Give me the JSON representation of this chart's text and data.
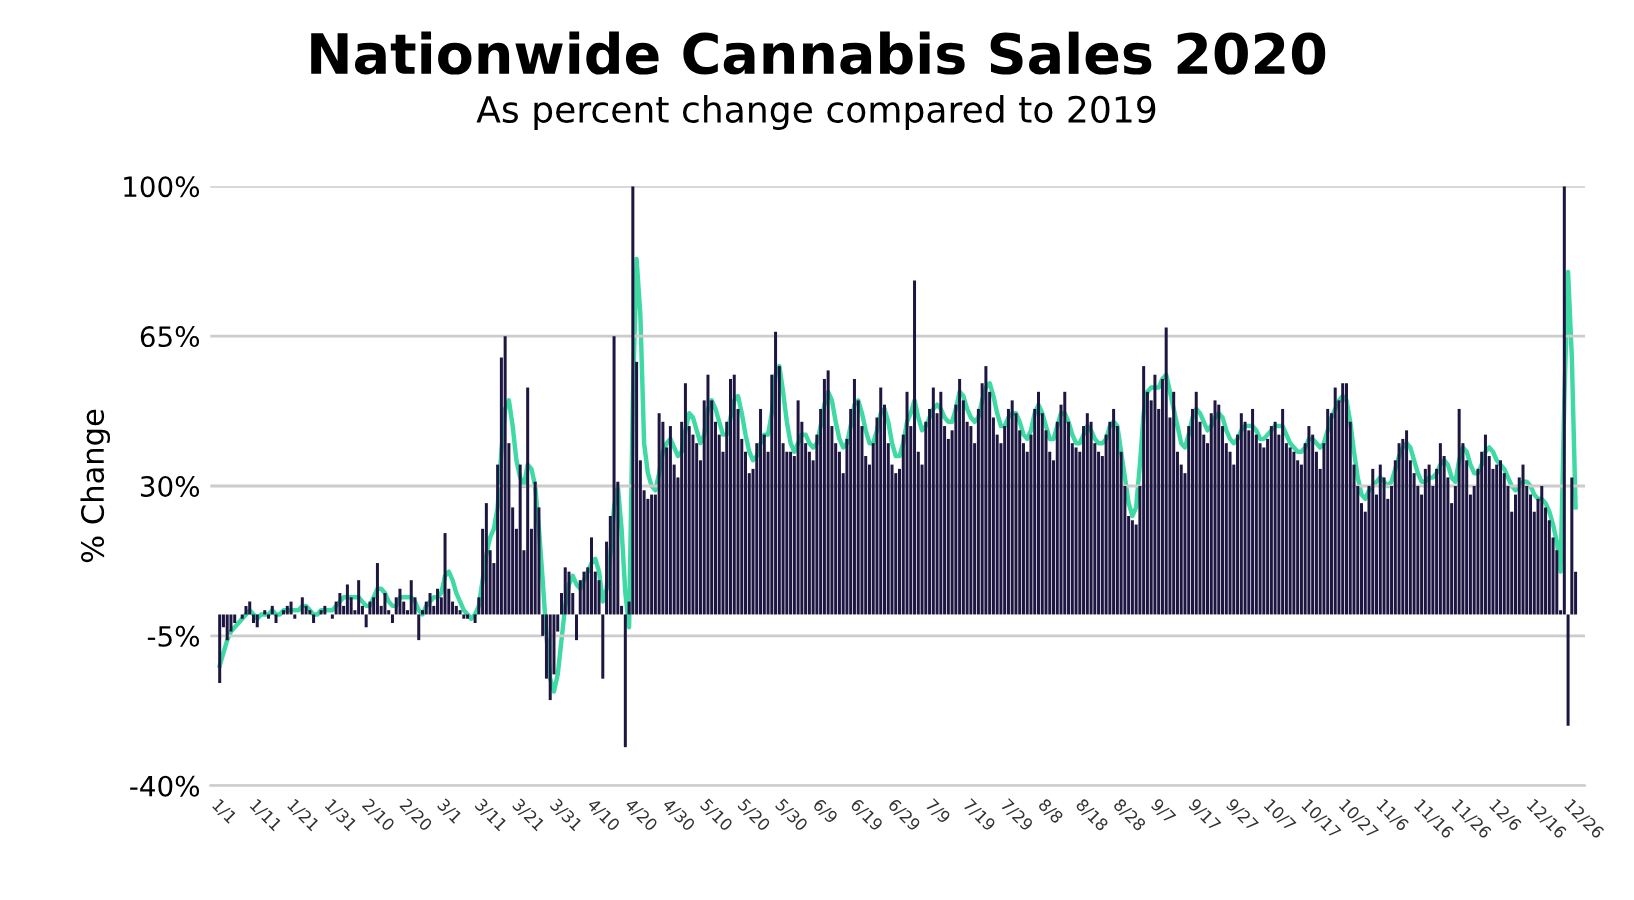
{
  "chart_data": {
    "type": "bar",
    "title": "Nationwide Cannabis Sales 2020",
    "subtitle": "As percent change compared to 2019",
    "ylabel": "% Change",
    "categories": [
      "1/1",
      null,
      null,
      null,
      null,
      null,
      null,
      null,
      null,
      null,
      "1/11",
      null,
      null,
      null,
      null,
      null,
      null,
      null,
      null,
      null,
      "1/21",
      null,
      null,
      null,
      null,
      null,
      null,
      null,
      null,
      null,
      "1/31",
      null,
      null,
      null,
      null,
      null,
      null,
      null,
      null,
      null,
      "2/10",
      null,
      null,
      null,
      null,
      null,
      null,
      null,
      null,
      null,
      "2/20",
      null,
      null,
      null,
      null,
      null,
      null,
      null,
      null,
      null,
      "3/1",
      null,
      null,
      null,
      null,
      null,
      null,
      null,
      null,
      null,
      "3/11",
      null,
      null,
      null,
      null,
      null,
      null,
      null,
      null,
      null,
      "3/21",
      null,
      null,
      null,
      null,
      null,
      null,
      null,
      null,
      null,
      "3/31",
      null,
      null,
      null,
      null,
      null,
      null,
      null,
      null,
      null,
      "4/10",
      null,
      null,
      null,
      null,
      null,
      null,
      null,
      null,
      null,
      "4/20",
      null,
      null,
      null,
      null,
      null,
      null,
      null,
      null,
      null,
      "4/30",
      null,
      null,
      null,
      null,
      null,
      null,
      null,
      null,
      null,
      "5/10",
      null,
      null,
      null,
      null,
      null,
      null,
      null,
      null,
      null,
      "5/20",
      null,
      null,
      null,
      null,
      null,
      null,
      null,
      null,
      null,
      "5/30",
      null,
      null,
      null,
      null,
      null,
      null,
      null,
      null,
      null,
      "6/9",
      null,
      null,
      null,
      null,
      null,
      null,
      null,
      null,
      null,
      "6/19",
      null,
      null,
      null,
      null,
      null,
      null,
      null,
      null,
      null,
      "6/29",
      null,
      null,
      null,
      null,
      null,
      null,
      null,
      null,
      null,
      "7/9",
      null,
      null,
      null,
      null,
      null,
      null,
      null,
      null,
      null,
      "7/19",
      null,
      null,
      null,
      null,
      null,
      null,
      null,
      null,
      null,
      "7/29",
      null,
      null,
      null,
      null,
      null,
      null,
      null,
      null,
      null,
      "8/8",
      null,
      null,
      null,
      null,
      null,
      null,
      null,
      null,
      null,
      "8/18",
      null,
      null,
      null,
      null,
      null,
      null,
      null,
      null,
      null,
      "8/28",
      null,
      null,
      null,
      null,
      null,
      null,
      null,
      null,
      null,
      "9/7",
      null,
      null,
      null,
      null,
      null,
      null,
      null,
      null,
      null,
      "9/17",
      null,
      null,
      null,
      null,
      null,
      null,
      null,
      null,
      null,
      "9/27",
      null,
      null,
      null,
      null,
      null,
      null,
      null,
      null,
      null,
      "10/7",
      null,
      null,
      null,
      null,
      null,
      null,
      null,
      null,
      null,
      "10/17",
      null,
      null,
      null,
      null,
      null,
      null,
      null,
      null,
      null,
      "10/27",
      null,
      null,
      null,
      null,
      null,
      null,
      null,
      null,
      null,
      "11/6",
      null,
      null,
      null,
      null,
      null,
      null,
      null,
      null,
      null,
      "11/16",
      null,
      null,
      null,
      null,
      null,
      null,
      null,
      null,
      null,
      "11/26",
      null,
      null,
      null,
      null,
      null,
      null,
      null,
      null,
      null,
      "12/6",
      null,
      null,
      null,
      null,
      null,
      null,
      null,
      null,
      null,
      "12/16",
      null,
      null,
      null,
      null,
      null,
      null,
      null,
      null,
      null,
      "12/26",
      null
    ],
    "series": [
      {
        "color": "#1c1640",
        "values": [
          -16,
          -3,
          -6,
          -4,
          -2,
          0,
          -1,
          2,
          3,
          -2,
          -3,
          0,
          1,
          -1,
          2,
          -2,
          0,
          1,
          2,
          3,
          -1,
          0,
          4,
          2,
          1,
          -2,
          0,
          1,
          2,
          0,
          -1,
          3,
          5,
          2,
          7,
          4,
          1,
          8,
          2,
          -3,
          3,
          4,
          12,
          2,
          5,
          1,
          -2,
          4,
          6,
          3,
          1,
          8,
          4,
          -6,
          1,
          3,
          5,
          2,
          6,
          4,
          19,
          6,
          3,
          2,
          1,
          -1,
          -1,
          0,
          -2,
          4,
          20,
          26,
          15,
          12,
          35,
          60,
          65,
          40,
          25,
          20,
          35,
          15,
          53,
          20,
          31,
          25,
          -5,
          -15,
          -20,
          -14,
          -4,
          5,
          11,
          10,
          5,
          -6,
          8,
          10,
          11,
          18,
          10,
          8,
          -15,
          17,
          23,
          65,
          31,
          2,
          -31,
          3,
          100,
          59,
          36,
          29,
          27,
          28,
          28,
          47,
          45,
          39,
          44,
          35,
          32,
          45,
          54,
          44,
          42,
          40,
          36,
          50,
          56,
          50,
          45,
          42,
          38,
          45,
          55,
          56,
          48,
          41,
          38,
          33,
          34,
          40,
          48,
          42,
          38,
          56,
          66,
          58,
          40,
          38,
          38,
          37,
          50,
          45,
          40,
          38,
          36,
          42,
          48,
          55,
          57,
          44,
          40,
          38,
          33,
          41,
          48,
          55,
          50,
          44,
          37,
          35,
          40,
          46,
          53,
          49,
          40,
          35,
          33,
          34,
          42,
          52,
          44,
          78,
          38,
          35,
          45,
          48,
          53,
          47,
          52,
          44,
          41,
          43,
          49,
          55,
          50,
          45,
          44,
          40,
          48,
          54,
          58,
          52,
          46,
          42,
          40,
          44,
          48,
          50,
          47,
          43,
          40,
          38,
          42,
          48,
          52,
          47,
          43,
          38,
          36,
          45,
          49,
          52,
          45,
          40,
          39,
          38,
          44,
          47,
          45,
          40,
          38,
          37,
          42,
          45,
          48,
          44,
          38,
          30,
          23,
          22,
          21,
          30,
          58,
          52,
          50,
          56,
          48,
          55,
          67,
          46,
          52,
          38,
          35,
          33,
          44,
          48,
          52,
          45,
          42,
          40,
          47,
          50,
          49,
          44,
          40,
          38,
          35,
          42,
          47,
          45,
          43,
          48,
          42,
          40,
          39,
          41,
          44,
          45,
          42,
          48,
          40,
          39,
          38,
          36,
          35,
          40,
          44,
          42,
          38,
          34,
          40,
          48,
          47,
          53,
          50,
          54,
          54,
          45,
          35,
          30,
          26,
          24,
          30,
          34,
          28,
          35,
          32,
          27,
          30,
          36,
          40,
          41,
          43,
          36,
          33,
          30,
          28,
          34,
          35,
          30,
          34,
          40,
          37,
          32,
          26,
          30,
          48,
          40,
          36,
          28,
          30,
          34,
          38,
          42,
          37,
          34,
          35,
          36,
          33,
          30,
          24,
          28,
          32,
          35,
          30,
          28,
          24,
          27,
          30,
          25,
          22,
          18,
          15,
          1,
          100,
          -26,
          32,
          10
        ]
      },
      {
        "type": "line",
        "color": "#3fd9a3",
        "values": [
          -12,
          -9,
          -6,
          -4,
          -3,
          -2,
          -1,
          0,
          1,
          0,
          -1,
          0,
          0,
          0,
          1,
          0,
          0,
          1,
          1,
          1,
          1,
          1,
          2,
          2,
          1,
          0,
          0,
          1,
          1,
          1,
          1,
          2,
          3,
          4,
          4,
          4,
          4,
          4,
          3,
          2,
          2,
          4,
          6,
          6,
          5,
          3,
          2,
          2,
          4,
          4,
          4,
          4,
          3,
          1,
          0,
          2,
          3,
          4,
          4,
          5,
          9,
          10,
          8,
          5,
          3,
          1,
          0,
          -1,
          0,
          2,
          8,
          14,
          18,
          20,
          25,
          38,
          48,
          50,
          44,
          36,
          32,
          30,
          35,
          34,
          30,
          20,
          8,
          -5,
          -15,
          -18,
          -14,
          -6,
          2,
          7,
          9,
          7,
          6,
          8,
          10,
          12,
          13,
          10,
          3,
          6,
          14,
          25,
          30,
          20,
          5,
          -3,
          50,
          83,
          70,
          40,
          33,
          30,
          29,
          33,
          38,
          40,
          41,
          39,
          37,
          38,
          43,
          47,
          46,
          43,
          40,
          42,
          48,
          50,
          48,
          45,
          42,
          42,
          46,
          50,
          51,
          47,
          42,
          38,
          36,
          37,
          40,
          42,
          42,
          47,
          56,
          58,
          52,
          45,
          40,
          38,
          40,
          42,
          42,
          40,
          39,
          40,
          44,
          49,
          52,
          50,
          45,
          41,
          39,
          40,
          44,
          49,
          50,
          47,
          43,
          40,
          40,
          43,
          47,
          48,
          45,
          40,
          37,
          37,
          40,
          45,
          47,
          50,
          46,
          43,
          44,
          46,
          48,
          49,
          48,
          46,
          45,
          45,
          48,
          52,
          51,
          48,
          46,
          45,
          46,
          50,
          53,
          54,
          51,
          47,
          44,
          44,
          46,
          47,
          47,
          45,
          42,
          41,
          43,
          47,
          49,
          47,
          44,
          41,
          41,
          44,
          47,
          47,
          45,
          42,
          40,
          40,
          42,
          44,
          43,
          41,
          40,
          40,
          41,
          44,
          45,
          44,
          38,
          32,
          26,
          23,
          25,
          35,
          47,
          52,
          53,
          53,
          53,
          55,
          56,
          52,
          48,
          44,
          40,
          39,
          42,
          46,
          48,
          47,
          45,
          43,
          44,
          46,
          47,
          46,
          43,
          41,
          40,
          41,
          43,
          44,
          44,
          44,
          43,
          41,
          41,
          42,
          43,
          44,
          44,
          44,
          42,
          40,
          39,
          38,
          38,
          39,
          41,
          41,
          40,
          39,
          40,
          43,
          46,
          48,
          50,
          51,
          50,
          45,
          38,
          32,
          28,
          27,
          29,
          30,
          31,
          32,
          31,
          30,
          31,
          34,
          37,
          39,
          40,
          39,
          36,
          33,
          31,
          31,
          32,
          32,
          33,
          35,
          36,
          35,
          32,
          31,
          36,
          39,
          38,
          35,
          33,
          33,
          35,
          38,
          39,
          38,
          36,
          35,
          34,
          32,
          30,
          29,
          30,
          31,
          31,
          30,
          28,
          27,
          27,
          26,
          24,
          21,
          17,
          10,
          50,
          80,
          60,
          25
        ]
      }
    ],
    "ylim": [
      -40,
      100
    ],
    "yticks": [
      {
        "value": -40,
        "label": "-40%"
      },
      {
        "value": -5,
        "label": "-5%"
      },
      {
        "value": 30,
        "label": "30%"
      },
      {
        "value": 65,
        "label": "65%"
      },
      {
        "value": 100,
        "label": "100%"
      }
    ],
    "grid": "y"
  }
}
